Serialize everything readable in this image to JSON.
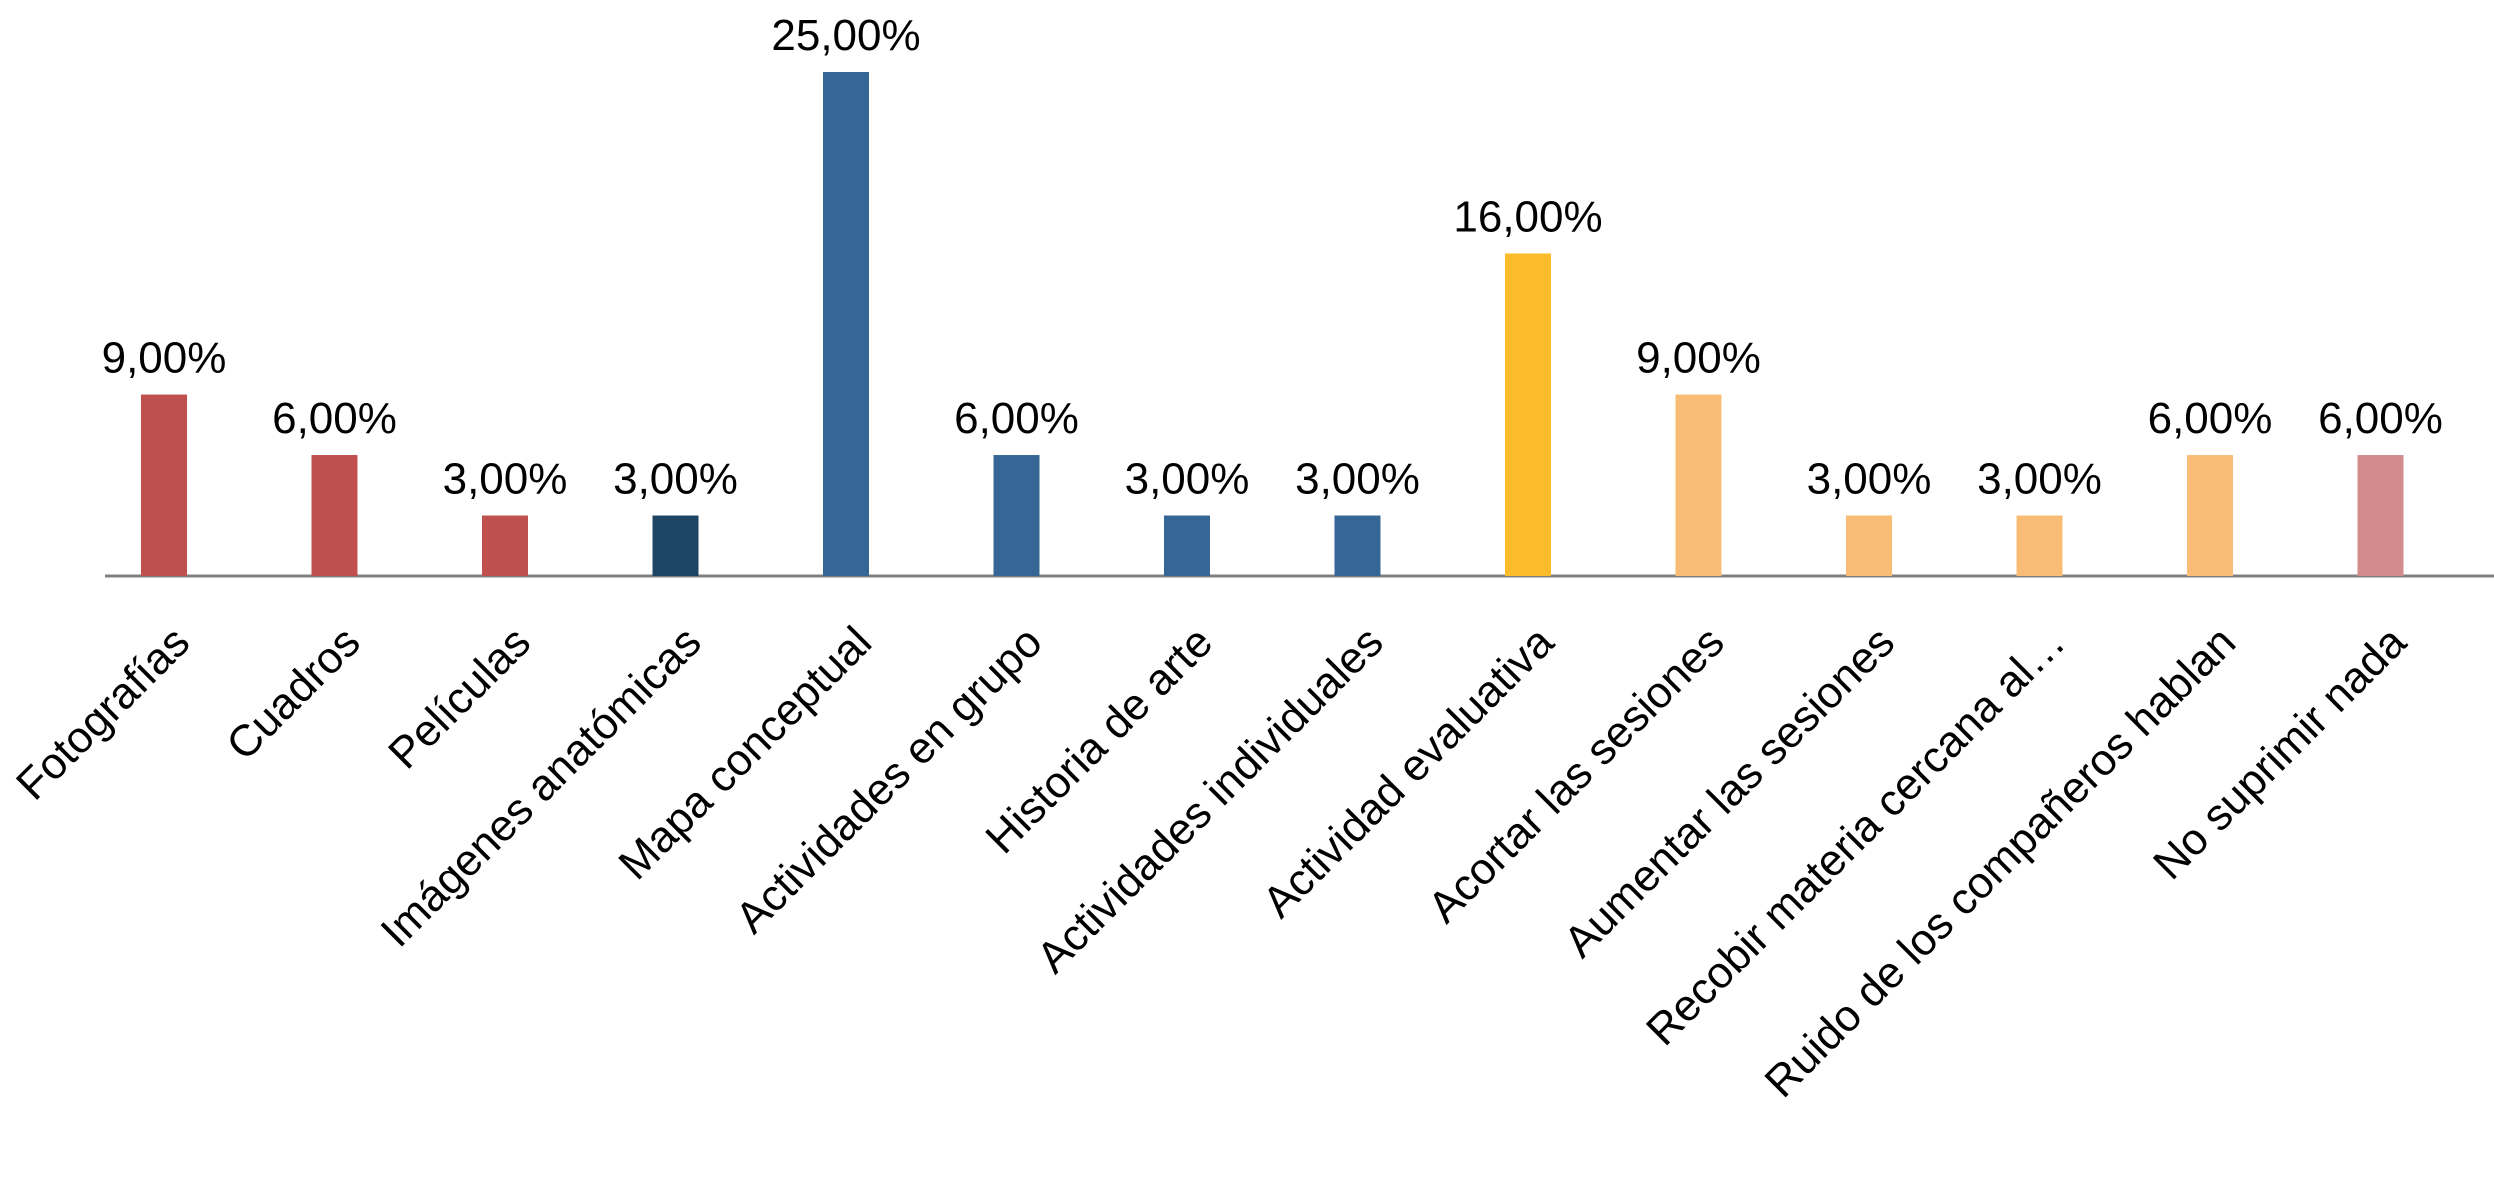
{
  "chart_data": {
    "type": "bar",
    "title": "",
    "xlabel": "",
    "ylabel": "",
    "ylim": [
      0,
      25
    ],
    "grid": false,
    "legend": "none",
    "categories": [
      "Fotografías",
      "Cuadros",
      "Películas",
      "Imágenes anatómicas",
      "Mapa conceptual",
      "Actividades en grupo",
      "Historia de arte",
      "Actividades individuales",
      "Actividad evaluativa",
      "Acortar las sesiones",
      "Aumentar las sesiones",
      "Recobir materia cercana al…",
      "Ruido de los compañeros hablan",
      "No suprimir nada"
    ],
    "values": [
      9,
      6,
      3,
      3,
      25,
      6,
      3,
      3,
      16,
      9,
      3,
      3,
      6,
      6
    ],
    "data_labels": [
      "9,00%",
      "6,00%",
      "3,00%",
      "3,00%",
      "25,00%",
      "6,00%",
      "3,00%",
      "3,00%",
      "16,00%",
      "9,00%",
      "3,00%",
      "3,00%",
      "6,00%",
      "6,00%"
    ],
    "colors": [
      "#C0504D",
      "#C0504D",
      "#C0504D",
      "#1F4564",
      "#356695",
      "#356695",
      "#356695",
      "#356695",
      "#FDBC2C",
      "#F9BC76",
      "#F9BC76",
      "#F9BC76",
      "#F9BC76",
      "#D38C8C"
    ],
    "axis_color": "#808080"
  }
}
